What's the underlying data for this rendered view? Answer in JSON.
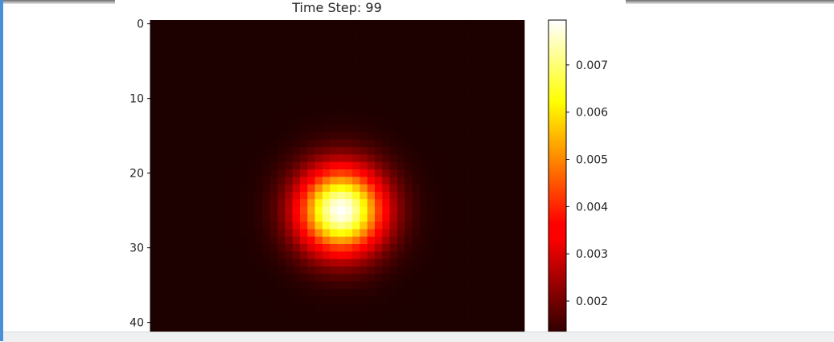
{
  "chart_data": {
    "type": "heatmap",
    "title": "Time Step: 99",
    "colormap": "hot",
    "grid": false,
    "rows": 42,
    "cols": 50,
    "peak_center": [
      25,
      25
    ],
    "peak_sigma": 4.0,
    "yticks": [
      "0",
      "10",
      "20",
      "30",
      "40"
    ],
    "ytick_values": [
      0,
      10,
      20,
      30,
      40
    ],
    "colorbar": {
      "vmin": 0.00115,
      "vmax": 0.00795,
      "ticks": [
        "0.002",
        "0.003",
        "0.004",
        "0.005",
        "0.006",
        "0.007"
      ],
      "tick_values": [
        0.002,
        0.003,
        0.004,
        0.005,
        0.006,
        0.007
      ]
    }
  }
}
